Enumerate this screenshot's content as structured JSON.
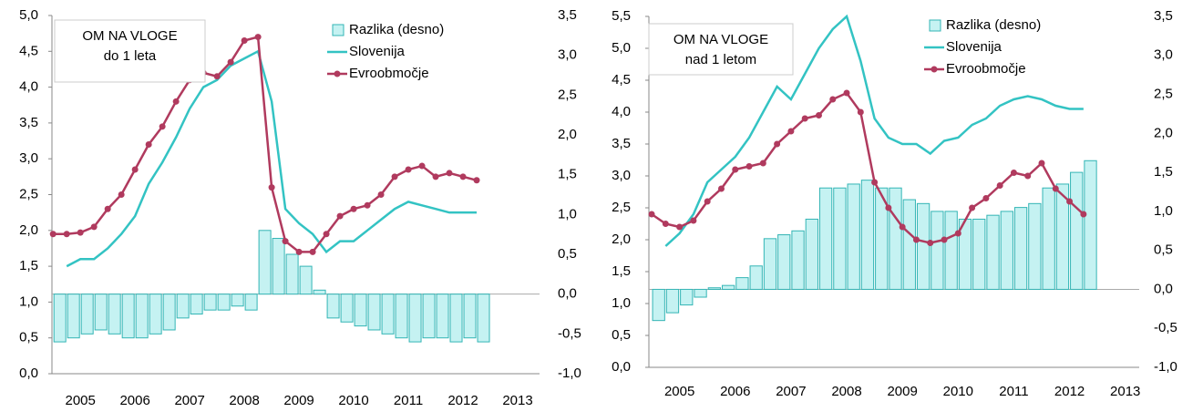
{
  "chart_data": [
    {
      "type": "bar-line",
      "annotation": [
        "OM NA VLOGE",
        "do 1 leta"
      ],
      "legend": "top-right",
      "x": [
        2005,
        2005.25,
        2005.5,
        2005.75,
        2006,
        2006.25,
        2006.5,
        2006.75,
        2007,
        2007.25,
        2007.5,
        2007.75,
        2008,
        2008.25,
        2008.5,
        2008.75,
        2009,
        2009.25,
        2009.5,
        2009.75,
        2010,
        2010.25,
        2010.5,
        2010.75,
        2011,
        2011.25,
        2011.5,
        2011.75,
        2012,
        2012.25,
        2012.5,
        2012.75
      ],
      "series": [
        {
          "name": "Razlika (desno)",
          "color": "#c5f2f2",
          "axis": "y2",
          "kind": "bar",
          "values": [
            -0.6,
            -0.55,
            -0.5,
            -0.45,
            -0.5,
            -0.55,
            -0.55,
            -0.5,
            -0.45,
            -0.3,
            -0.25,
            -0.2,
            -0.2,
            -0.15,
            -0.2,
            0.8,
            0.7,
            0.5,
            0.35,
            0.05,
            -0.3,
            -0.35,
            -0.4,
            -0.45,
            -0.5,
            -0.55,
            -0.6,
            -0.55,
            -0.55,
            -0.6,
            -0.55,
            -0.6
          ]
        },
        {
          "name": "Slovenija",
          "color": "#33c3c3",
          "kind": "line",
          "values": [
            null,
            1.5,
            1.6,
            1.6,
            1.75,
            1.95,
            2.2,
            2.65,
            2.95,
            3.3,
            3.7,
            4.0,
            4.1,
            4.3,
            4.4,
            4.5,
            3.8,
            2.3,
            2.1,
            1.95,
            1.7,
            1.85,
            1.85,
            2.0,
            2.15,
            2.3,
            2.4,
            2.35,
            2.3,
            2.25,
            2.25,
            2.25
          ]
        },
        {
          "name": "Evroobmočje",
          "color": "#b03a5e",
          "kind": "line-marker",
          "values": [
            1.95,
            1.95,
            1.97,
            2.05,
            2.3,
            2.5,
            2.85,
            3.2,
            3.45,
            3.8,
            4.1,
            4.2,
            4.15,
            4.35,
            4.65,
            4.7,
            2.6,
            1.85,
            1.7,
            1.7,
            1.95,
            2.2,
            2.3,
            2.35,
            2.5,
            2.75,
            2.85,
            2.9,
            2.75,
            2.8,
            2.75,
            2.7
          ]
        }
      ],
      "xlim": [
        2004.98,
        2013.9
      ],
      "xticks": [
        {
          "value": 2005.5,
          "label": "2005"
        },
        {
          "value": 2006.5,
          "label": "2006"
        },
        {
          "value": 2007.5,
          "label": "2007"
        },
        {
          "value": 2008.5,
          "label": "2008"
        },
        {
          "value": 2009.5,
          "label": "2009"
        },
        {
          "value": 2010.5,
          "label": "2010"
        },
        {
          "value": 2011.5,
          "label": "2011"
        },
        {
          "value": 2012.5,
          "label": "2012"
        },
        {
          "value": 2013.5,
          "label": "2013"
        }
      ],
      "ylim": [
        0,
        5
      ],
      "yticks": [
        {
          "value": 0,
          "label": "0,0"
        },
        {
          "value": 0.5,
          "label": "0,5"
        },
        {
          "value": 1,
          "label": "1,0"
        },
        {
          "value": 1.5,
          "label": "1,5"
        },
        {
          "value": 2,
          "label": "2,0"
        },
        {
          "value": 2.5,
          "label": "2,5"
        },
        {
          "value": 3,
          "label": "3,0"
        },
        {
          "value": 3.5,
          "label": "3,5"
        },
        {
          "value": 4,
          "label": "4,0"
        },
        {
          "value": 4.5,
          "label": "4,5"
        },
        {
          "value": 5,
          "label": "5,0"
        }
      ],
      "y2lim": [
        -1,
        3.5
      ],
      "y2ticks": [
        {
          "value": -1,
          "label": "-1,0"
        },
        {
          "value": -0.5,
          "label": "-0,5"
        },
        {
          "value": 0,
          "label": "0,0"
        },
        {
          "value": 0.5,
          "label": "0,5"
        },
        {
          "value": 1,
          "label": "1,0"
        },
        {
          "value": 1.5,
          "label": "1,5"
        },
        {
          "value": 2,
          "label": "2,0"
        },
        {
          "value": 2.5,
          "label": "2,5"
        },
        {
          "value": 3,
          "label": "3,0"
        },
        {
          "value": 3.5,
          "label": "3,5"
        }
      ]
    },
    {
      "type": "bar-line",
      "annotation": [
        "OM NA VLOGE",
        "nad 1 letom"
      ],
      "legend": "top-right",
      "x": [
        2005,
        2005.25,
        2005.5,
        2005.75,
        2006,
        2006.25,
        2006.5,
        2006.75,
        2007,
        2007.25,
        2007.5,
        2007.75,
        2008,
        2008.25,
        2008.5,
        2008.75,
        2009,
        2009.25,
        2009.5,
        2009.75,
        2010,
        2010.25,
        2010.5,
        2010.75,
        2011,
        2011.25,
        2011.5,
        2011.75,
        2012,
        2012.25,
        2012.5,
        2012.75
      ],
      "series": [
        {
          "name": "Razlika (desno)",
          "color": "#c5f2f2",
          "axis": "y2",
          "kind": "bar",
          "values": [
            -0.4,
            -0.3,
            -0.2,
            -0.1,
            0.02,
            0.05,
            0.15,
            0.3,
            0.65,
            0.7,
            0.75,
            0.9,
            1.3,
            1.3,
            1.35,
            1.4,
            1.3,
            1.3,
            1.15,
            1.1,
            1.0,
            1.0,
            0.9,
            0.9,
            0.95,
            1.0,
            1.05,
            1.1,
            1.3,
            1.35,
            1.5,
            1.65
          ]
        },
        {
          "name": "Slovenija",
          "color": "#33c3c3",
          "kind": "line",
          "values": [
            null,
            1.9,
            2.1,
            2.4,
            2.9,
            3.1,
            3.3,
            3.6,
            4.0,
            4.4,
            4.2,
            4.6,
            5.0,
            5.3,
            5.5,
            4.8,
            3.9,
            3.6,
            3.5,
            3.5,
            3.35,
            3.55,
            3.6,
            3.8,
            3.9,
            4.1,
            4.2,
            4.25,
            4.2,
            4.1,
            4.05,
            4.05
          ]
        },
        {
          "name": "Evroobmočje",
          "color": "#b03a5e",
          "kind": "line-marker",
          "values": [
            2.4,
            2.25,
            2.2,
            2.3,
            2.6,
            2.8,
            3.1,
            3.15,
            3.2,
            3.5,
            3.7,
            3.9,
            3.95,
            4.2,
            4.3,
            4.0,
            2.9,
            2.5,
            2.2,
            2.0,
            1.95,
            2.0,
            2.1,
            2.5,
            2.65,
            2.85,
            3.05,
            3.0,
            3.2,
            2.8,
            2.6,
            2.4
          ]
        }
      ],
      "xlim": [
        2004.95,
        2013.75
      ],
      "xticks": [
        {
          "value": 2005.5,
          "label": "2005"
        },
        {
          "value": 2006.5,
          "label": "2006"
        },
        {
          "value": 2007.5,
          "label": "2007"
        },
        {
          "value": 2008.5,
          "label": "2008"
        },
        {
          "value": 2009.5,
          "label": "2009"
        },
        {
          "value": 2010.5,
          "label": "2010"
        },
        {
          "value": 2011.5,
          "label": "2011"
        },
        {
          "value": 2012.5,
          "label": "2012"
        },
        {
          "value": 2013.5,
          "label": "2013"
        }
      ],
      "ylim": [
        0,
        5.5
      ],
      "yticks": [
        {
          "value": 0,
          "label": "0,0"
        },
        {
          "value": 0.5,
          "label": "0,5"
        },
        {
          "value": 1,
          "label": "1,0"
        },
        {
          "value": 1.5,
          "label": "1,5"
        },
        {
          "value": 2,
          "label": "2,0"
        },
        {
          "value": 2.5,
          "label": "2,5"
        },
        {
          "value": 3,
          "label": "3,0"
        },
        {
          "value": 3.5,
          "label": "3,5"
        },
        {
          "value": 4,
          "label": "4,0"
        },
        {
          "value": 4.5,
          "label": "4,5"
        },
        {
          "value": 5,
          "label": "5,0"
        },
        {
          "value": 5.5,
          "label": "5,5"
        }
      ],
      "y2lim": [
        -1,
        3.5
      ],
      "y2ticks": [
        {
          "value": -1,
          "label": "-1,0"
        },
        {
          "value": -0.5,
          "label": "-0,5"
        },
        {
          "value": 0,
          "label": "0,0"
        },
        {
          "value": 0.5,
          "label": "0,5"
        },
        {
          "value": 1,
          "label": "1,0"
        },
        {
          "value": 1.5,
          "label": "1,5"
        },
        {
          "value": 2,
          "label": "2,0"
        },
        {
          "value": 2.5,
          "label": "2,5"
        },
        {
          "value": 3,
          "label": "3,0"
        },
        {
          "value": 3.5,
          "label": "3,5"
        }
      ]
    }
  ]
}
